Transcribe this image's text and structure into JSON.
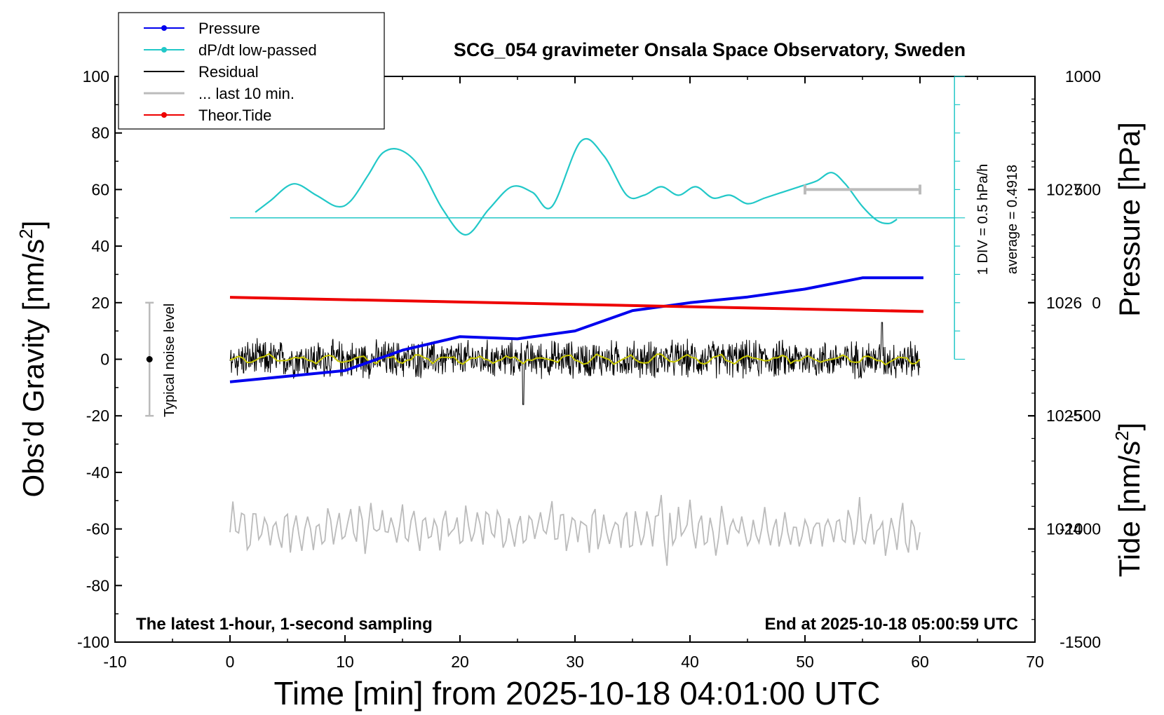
{
  "chart_data": {
    "type": "line",
    "title": "SCG_054 gravimeter Onsala Space Observatory, Sweden",
    "xlabel": "Time [min] from 2025-10-18 04:01:00 UTC",
    "ylabel_left": "Obs’d Gravity [nm/s",
    "ylabel_left_sup": "2",
    "ylabel_left_end": "]",
    "ylabel_right_pressure": "Pressure [hPa]",
    "ylabel_right_tide": "Tide [nm/s",
    "ylabel_right_tide_sup": "2",
    "ylabel_right_tide_end": "]",
    "xlim": [
      -10,
      70
    ],
    "ylim": [
      -100,
      100
    ],
    "xticks": [
      "-10",
      "0",
      "10",
      "20",
      "30",
      "40",
      "50",
      "60",
      "70"
    ],
    "yticks": [
      "-100",
      "-80",
      "-60",
      "-40",
      "-20",
      "0",
      "20",
      "40",
      "60",
      "80",
      "100"
    ],
    "pressure_ticks": [
      "1024",
      "1025",
      "1026",
      "1027"
    ],
    "tide_ticks": [
      "-1500",
      "-1000",
      "-500",
      "0",
      "500",
      "1000"
    ],
    "pressure_axis": {
      "ylim_hpa": [
        1023.0,
        1028.0
      ]
    },
    "tide_axis": {
      "ylim": [
        -1500,
        1000
      ]
    },
    "legend": {
      "position": "top-left",
      "entries": [
        {
          "label": "Pressure",
          "color": "#0000ee",
          "marker": true
        },
        {
          "label": "dP/dt low-passed",
          "color": "#22c8c8",
          "marker": true
        },
        {
          "label": "Residual",
          "color": "#000000",
          "marker": false
        },
        {
          "label": "... last 10 min.",
          "color": "#bbbbbb",
          "marker": false
        },
        {
          "label": "Theor.Tide",
          "color": "#ee0000",
          "marker": true
        }
      ]
    },
    "annotations": {
      "bottom_left": "The latest 1-hour, 1-second sampling",
      "bottom_right": "End at 2025-10-18 05:00:59 UTC",
      "noise": "Typical noise level",
      "dpdt_scale": "1 DIV = 0.5 hPa/h",
      "dpdt_average": "average = 0.4918"
    },
    "colors": {
      "pressure": "#0000ee",
      "dpdt": "#22c8c8",
      "residual": "#000000",
      "residual_smooth": "#c8c800",
      "last10": "#bbbbbb",
      "tide": "#ee0000"
    },
    "series": [
      {
        "name": "Pressure",
        "unit": "hPa",
        "x": [
          0,
          5,
          10,
          15,
          20,
          25,
          30,
          35,
          40,
          45,
          50,
          55,
          60.3
        ],
        "values": [
          1025.3,
          1025.35,
          1025.4,
          1025.58,
          1025.7,
          1025.68,
          1025.75,
          1025.93,
          1026.0,
          1026.05,
          1026.12,
          1026.22,
          1026.22
        ]
      },
      {
        "name": "dP/dt low-passed",
        "unit": "gravity-axis position",
        "x": [
          2.2,
          3.5,
          5.5,
          7.5,
          9.3,
          10.5,
          12.0,
          13.3,
          14.8,
          16.5,
          18.5,
          20.5,
          22.5,
          24.5,
          26.3,
          28.0,
          30.5,
          32.5,
          34.5,
          36.0,
          37.5,
          39.0,
          40.5,
          42.0,
          43.5,
          45.0,
          46.5,
          48.0,
          49.5,
          51.0,
          52.3,
          53.5,
          55.0,
          56.3,
          57.3,
          58.0
        ],
        "values": [
          52,
          56,
          62,
          58,
          54,
          56,
          65,
          73,
          74,
          68,
          53,
          44,
          53,
          61,
          59,
          54,
          77,
          72,
          58,
          58,
          61,
          58,
          61,
          57,
          58,
          55,
          57,
          59,
          61,
          63,
          66,
          62,
          54,
          49,
          48,
          49.5
        ]
      },
      {
        "name": "dP/dt zero line",
        "x": [
          0,
          63
        ],
        "values": [
          50,
          50
        ]
      },
      {
        "name": "Residual",
        "x_range": [
          0,
          60
        ],
        "amplitude": 6,
        "spikes": [
          {
            "x": 25.5,
            "value": -16
          },
          {
            "x": 56.7,
            "value": 13
          }
        ]
      },
      {
        "name": "... last 10 min.",
        "x_range": [
          0,
          60
        ],
        "center": -60,
        "amplitude": 6,
        "spikes": [
          {
            "x": 37.5,
            "value": -48
          },
          {
            "x": 38.0,
            "value": -73
          }
        ]
      },
      {
        "name": "Theor.Tide",
        "unit": "nm/s2",
        "x": [
          0,
          60.3
        ],
        "values": [
          24,
          -39
        ]
      }
    ]
  }
}
